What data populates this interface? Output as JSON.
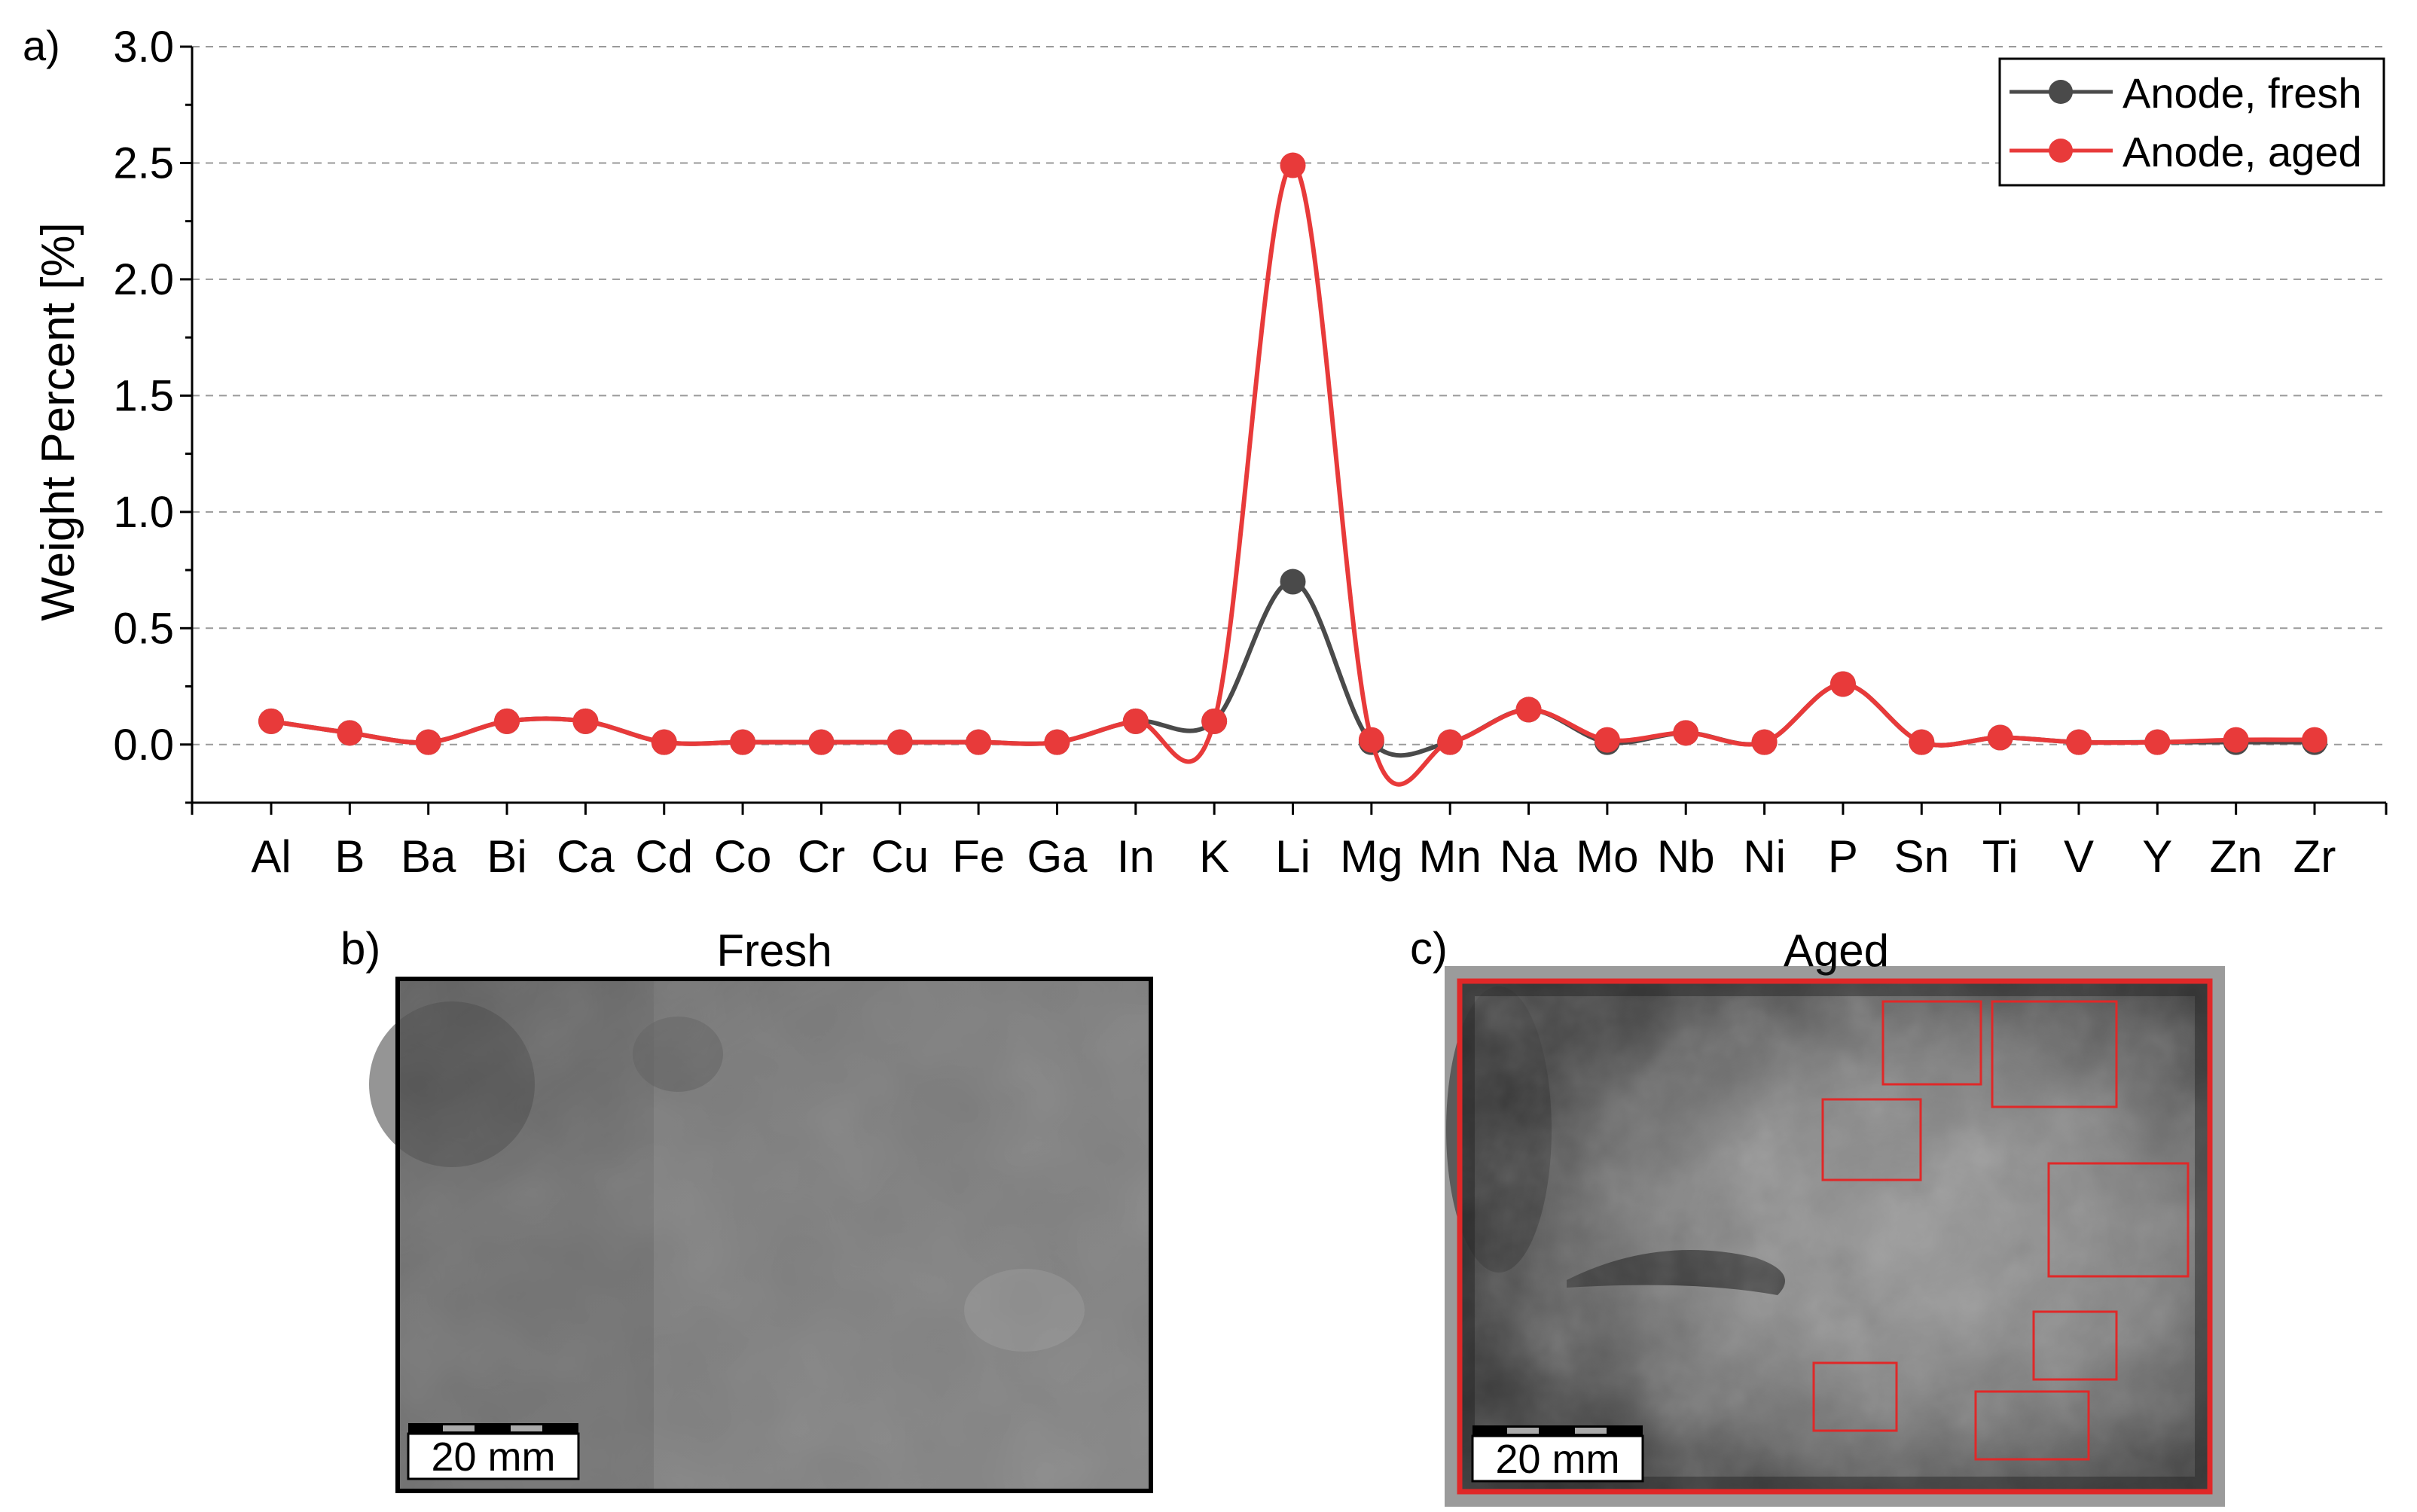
{
  "panels": {
    "a": {
      "label": "a)"
    },
    "b": {
      "label": "b)",
      "title": "Fresh",
      "scale_bar": "20 mm"
    },
    "c": {
      "label": "c)",
      "title": "Aged",
      "scale_bar": "20 mm"
    }
  },
  "colors": {
    "fresh": "#4a4a4a",
    "aged": "#e83a3a",
    "highlight_box": "#e02828",
    "aged_frame": "#e02828",
    "fresh_frame": "#000000"
  },
  "chart_data": {
    "type": "line",
    "title": "",
    "xlabel": "",
    "ylabel": "Weight Percent [%]",
    "ylim": [
      -0.25,
      3.0
    ],
    "yticks": [
      "0.0",
      "0.5",
      "1.0",
      "1.5",
      "2.0",
      "2.5",
      "3.0"
    ],
    "grid": "horizontal dashed",
    "legend_position": "top-right",
    "categories": [
      "Al",
      "B",
      "Ba",
      "Bi",
      "Ca",
      "Cd",
      "Co",
      "Cr",
      "Cu",
      "Fe",
      "Ga",
      "In",
      "K",
      "Li",
      "Mg",
      "Mn",
      "Na",
      "Mo",
      "Nb",
      "Ni",
      "P",
      "Sn",
      "Ti",
      "V",
      "Y",
      "Zn",
      "Zr"
    ],
    "series": [
      {
        "name": "Anode, fresh",
        "color": "#4a4a4a",
        "values": [
          0.1,
          0.05,
          0.01,
          0.1,
          0.1,
          0.01,
          0.01,
          0.01,
          0.01,
          0.01,
          0.01,
          0.1,
          0.1,
          0.7,
          0.01,
          0.01,
          0.15,
          0.01,
          0.05,
          0.01,
          0.26,
          0.01,
          0.03,
          0.01,
          0.01,
          0.01,
          0.01
        ]
      },
      {
        "name": "Anode, aged",
        "color": "#e83a3a",
        "values": [
          0.1,
          0.05,
          0.01,
          0.1,
          0.1,
          0.01,
          0.01,
          0.01,
          0.01,
          0.01,
          0.01,
          0.1,
          0.1,
          2.49,
          0.02,
          0.01,
          0.15,
          0.02,
          0.05,
          0.01,
          0.26,
          0.01,
          0.03,
          0.01,
          0.01,
          0.02,
          0.02
        ]
      }
    ]
  }
}
